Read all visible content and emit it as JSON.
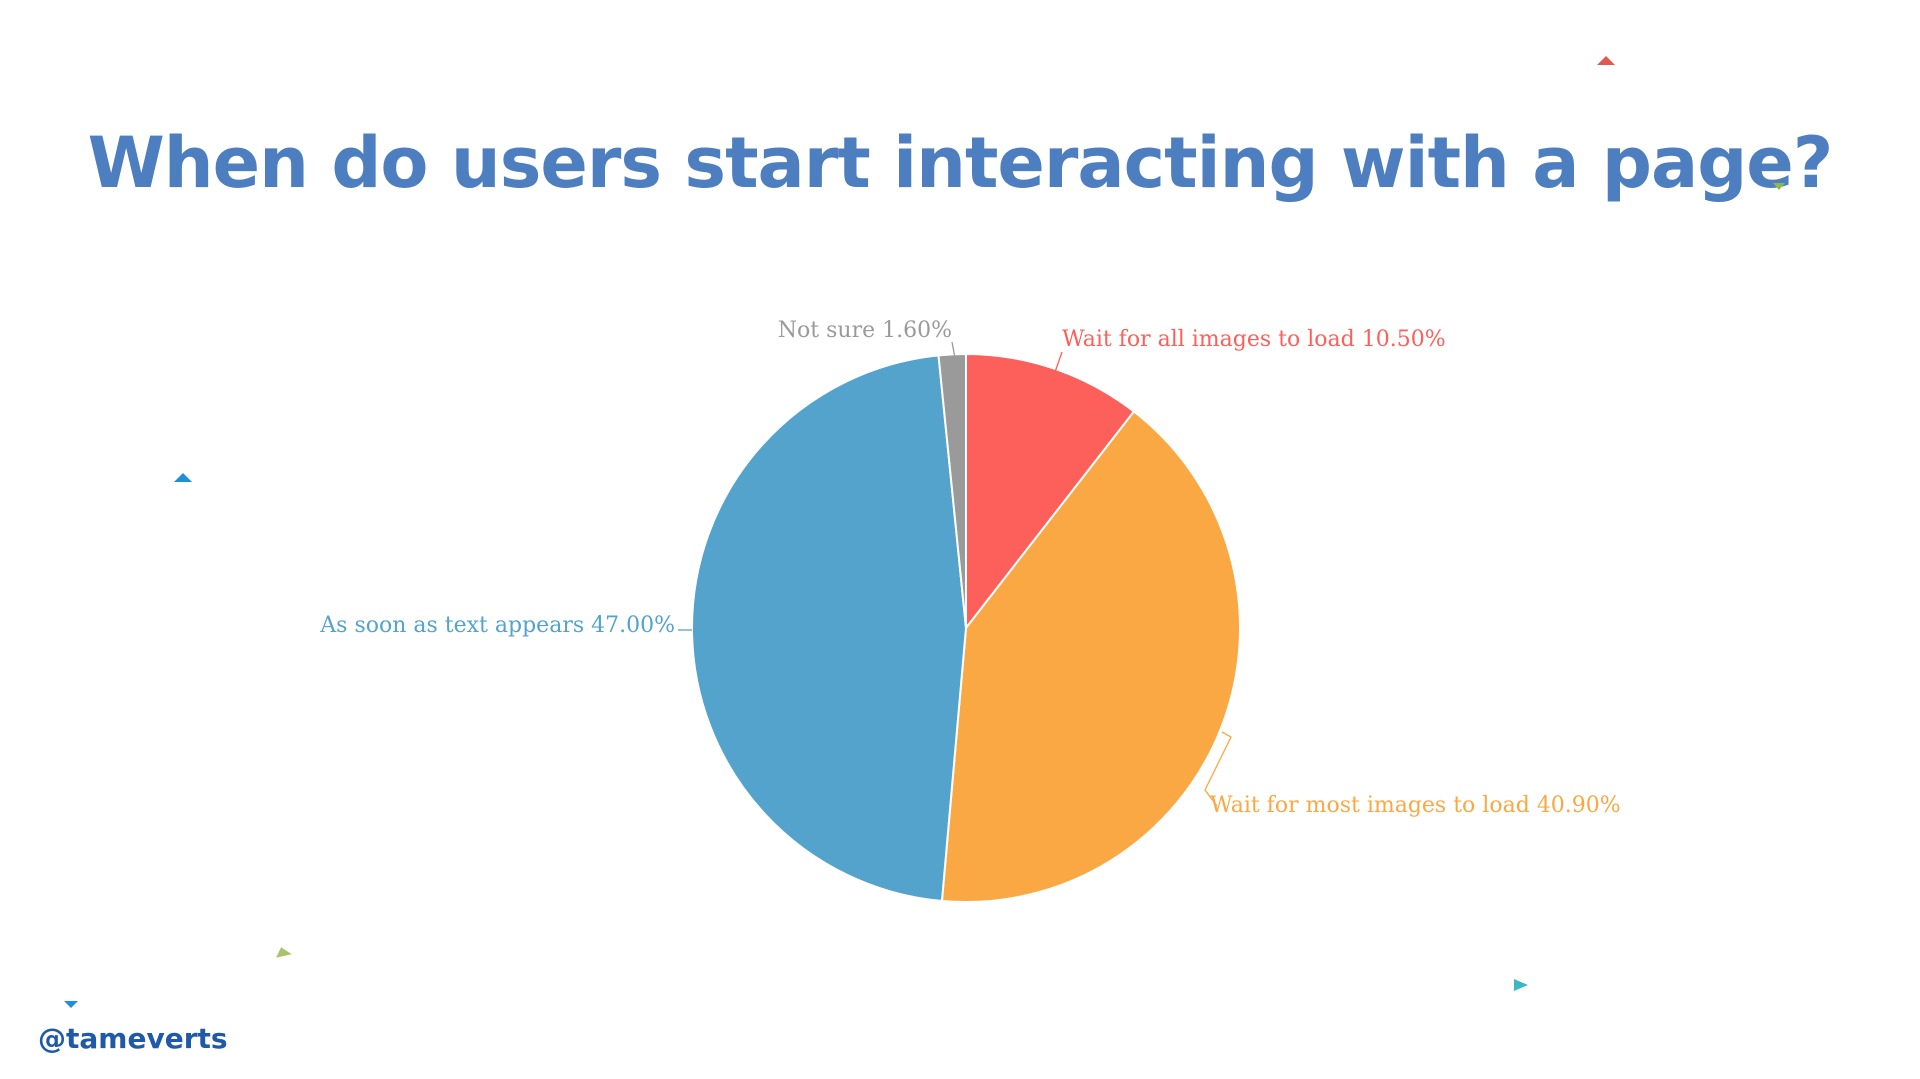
{
  "slide": {
    "title": "When do users start interacting with a page?",
    "handle": "@tameverts"
  },
  "chart_data": {
    "type": "pie",
    "title": "When do users start interacting with a page?",
    "slices": [
      {
        "label": "Wait for all images to load",
        "value": 10.5,
        "display": "Wait for all images to load 10.50%",
        "color": "#fd5f5a"
      },
      {
        "label": "Wait for most images to load",
        "value": 40.9,
        "display": "Wait for most images to load 40.90%",
        "color": "#f9a843"
      },
      {
        "label": "As soon as text appears",
        "value": 47.0,
        "display": "As soon as text appears 47.00%",
        "color": "#53a3cc"
      },
      {
        "label": "Not sure",
        "value": 1.6,
        "display": "Not sure 1.60%",
        "color": "#9a9a9a"
      }
    ],
    "start_angle": "12 o'clock",
    "direction": "clockwise",
    "legend": "none",
    "data_labels": "outside with leader lines"
  },
  "decorations": {
    "confetti_colors": [
      "#e05a52",
      "#8db84a",
      "#1f8fd6",
      "#a9c46a",
      "#1f8fd6",
      "#3bb8c4"
    ]
  }
}
